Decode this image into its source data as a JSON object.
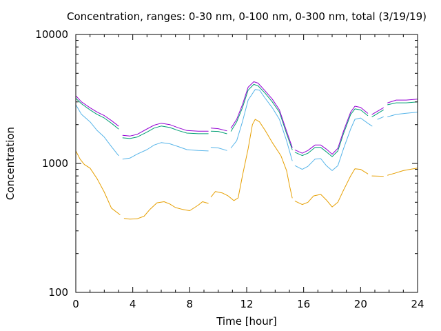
{
  "chart_data": {
    "type": "line",
    "title": "Concentration, ranges: 0-30 nm, 0-100 nm, 0-300 nm, total (3/19/19)",
    "xlabel": "Time [hour]",
    "ylabel": "Concentration",
    "xlim": [
      0,
      24
    ],
    "ylim": [
      100,
      10000
    ],
    "yscale": "log",
    "xticks": [
      "0",
      "4",
      "8",
      "12",
      "16",
      "20",
      "24"
    ],
    "yticks": [
      "100",
      "1000",
      "10000"
    ],
    "grid": false,
    "legend": "none",
    "series": [
      {
        "color": "#e69f00",
        "segments": [
          [
            [
              0,
              1250
            ],
            [
              0.3,
              1080
            ],
            [
              0.6,
              980
            ],
            [
              1,
              920
            ],
            [
              1.5,
              760
            ],
            [
              2,
              600
            ],
            [
              2.5,
              450
            ],
            [
              3.1,
              400
            ]
          ],
          [
            [
              3.4,
              375
            ],
            [
              3.8,
              370
            ],
            [
              4.3,
              372
            ],
            [
              4.8,
              390
            ],
            [
              5.2,
              440
            ],
            [
              5.7,
              495
            ],
            [
              6.2,
              505
            ],
            [
              6.6,
              485
            ],
            [
              7,
              455
            ],
            [
              7.5,
              440
            ],
            [
              8,
              430
            ],
            [
              8.6,
              475
            ],
            [
              8.9,
              505
            ],
            [
              9.3,
              490
            ]
          ],
          [
            [
              9.5,
              550
            ],
            [
              9.8,
              605
            ],
            [
              10.3,
              590
            ],
            [
              10.7,
              560
            ],
            [
              11.1,
              515
            ],
            [
              11.4,
              540
            ],
            [
              11.7,
              800
            ],
            [
              12.1,
              1300
            ],
            [
              12.4,
              2000
            ],
            [
              12.6,
              2200
            ],
            [
              12.9,
              2100
            ],
            [
              13.3,
              1800
            ],
            [
              13.8,
              1450
            ],
            [
              14.4,
              1150
            ],
            [
              14.8,
              880
            ],
            [
              15,
              680
            ],
            [
              15.2,
              540
            ]
          ],
          [
            [
              15.4,
              510
            ],
            [
              15.9,
              480
            ],
            [
              16.3,
              500
            ],
            [
              16.7,
              560
            ],
            [
              17.2,
              575
            ],
            [
              17.6,
              520
            ],
            [
              18,
              460
            ],
            [
              18.4,
              500
            ],
            [
              18.8,
              620
            ],
            [
              19.3,
              800
            ],
            [
              19.6,
              910
            ],
            [
              20,
              900
            ],
            [
              20.5,
              830
            ]
          ],
          [
            [
              20.8,
              800
            ],
            [
              21.6,
              795
            ]
          ],
          [
            [
              21.9,
              810
            ],
            [
              22.4,
              840
            ],
            [
              23,
              880
            ],
            [
              23.6,
              905
            ],
            [
              24,
              920
            ]
          ]
        ]
      },
      {
        "color": "#56b4e9",
        "segments": [
          [
            [
              0,
              2850
            ],
            [
              0.4,
              2400
            ],
            [
              1,
              2100
            ],
            [
              1.5,
              1800
            ],
            [
              2,
              1600
            ],
            [
              2.5,
              1350
            ],
            [
              3,
              1150
            ]
          ],
          [
            [
              3.3,
              1080
            ],
            [
              3.8,
              1100
            ],
            [
              4.3,
              1180
            ],
            [
              5,
              1280
            ],
            [
              5.5,
              1390
            ],
            [
              6,
              1450
            ],
            [
              6.6,
              1420
            ],
            [
              7.2,
              1350
            ],
            [
              7.8,
              1280
            ],
            [
              8.6,
              1260
            ],
            [
              9.3,
              1250
            ]
          ],
          [
            [
              9.5,
              1330
            ],
            [
              10,
              1320
            ],
            [
              10.6,
              1260
            ]
          ],
          [
            [
              10.9,
              1320
            ],
            [
              11.3,
              1500
            ],
            [
              11.7,
              2100
            ],
            [
              12.1,
              3100
            ],
            [
              12.6,
              3750
            ],
            [
              12.9,
              3700
            ],
            [
              13.3,
              3200
            ],
            [
              13.8,
              2700
            ],
            [
              14.3,
              2200
            ],
            [
              14.8,
              1500
            ],
            [
              15.2,
              1050
            ]
          ],
          [
            [
              15.4,
              960
            ],
            [
              15.9,
              900
            ],
            [
              16.3,
              950
            ],
            [
              16.8,
              1080
            ],
            [
              17.2,
              1090
            ],
            [
              17.6,
              960
            ],
            [
              18,
              880
            ],
            [
              18.4,
              960
            ],
            [
              18.8,
              1300
            ],
            [
              19.3,
              1850
            ],
            [
              19.6,
              2200
            ],
            [
              20,
              2250
            ],
            [
              20.5,
              2050
            ],
            [
              20.8,
              1950
            ]
          ],
          [
            [
              21.2,
              2200
            ],
            [
              21.6,
              2300
            ]
          ],
          [
            [
              21.9,
              2300
            ],
            [
              22.5,
              2400
            ],
            [
              23.2,
              2450
            ],
            [
              24,
              2500
            ]
          ]
        ]
      },
      {
        "color": "#009e73",
        "segments": [
          [
            [
              0,
              3200
            ],
            [
              0.4,
              2900
            ],
            [
              1,
              2600
            ],
            [
              1.5,
              2400
            ],
            [
              2,
              2250
            ],
            [
              2.5,
              2050
            ],
            [
              3,
              1850
            ]
          ],
          [
            [
              3.3,
              1580
            ],
            [
              3.8,
              1560
            ],
            [
              4.3,
              1600
            ],
            [
              5,
              1750
            ],
            [
              5.5,
              1880
            ],
            [
              6,
              1950
            ],
            [
              6.6,
              1900
            ],
            [
              7.2,
              1800
            ],
            [
              7.8,
              1720
            ],
            [
              8.6,
              1700
            ],
            [
              9.3,
              1700
            ]
          ],
          [
            [
              9.5,
              1780
            ],
            [
              10,
              1770
            ],
            [
              10.6,
              1700
            ]
          ],
          [
            [
              10.9,
              1780
            ],
            [
              11.3,
              2100
            ],
            [
              11.7,
              2700
            ],
            [
              12.1,
              3700
            ],
            [
              12.5,
              4100
            ],
            [
              12.8,
              4000
            ],
            [
              13.3,
              3500
            ],
            [
              13.8,
              3000
            ],
            [
              14.3,
              2500
            ],
            [
              14.8,
              1700
            ],
            [
              15.2,
              1280
            ]
          ],
          [
            [
              15.4,
              1220
            ],
            [
              15.9,
              1150
            ],
            [
              16.3,
              1200
            ],
            [
              16.8,
              1330
            ],
            [
              17.2,
              1330
            ],
            [
              17.6,
              1230
            ],
            [
              18,
              1130
            ],
            [
              18.4,
              1250
            ],
            [
              18.8,
              1700
            ],
            [
              19.3,
              2400
            ],
            [
              19.6,
              2650
            ],
            [
              20,
              2600
            ],
            [
              20.5,
              2350
            ]
          ],
          [
            [
              20.8,
              2300
            ],
            [
              21.6,
              2600
            ]
          ],
          [
            [
              21.9,
              2850
            ],
            [
              22.5,
              2950
            ],
            [
              23.2,
              2950
            ],
            [
              24,
              3000
            ]
          ]
        ]
      },
      {
        "color": "#9400d3",
        "segments": [
          [
            [
              0,
              3350
            ],
            [
              0.4,
              3000
            ],
            [
              1,
              2700
            ],
            [
              1.5,
              2500
            ],
            [
              2,
              2350
            ],
            [
              2.5,
              2150
            ],
            [
              3,
              1950
            ]
          ],
          [
            [
              3.3,
              1650
            ],
            [
              3.8,
              1630
            ],
            [
              4.3,
              1680
            ],
            [
              5,
              1850
            ],
            [
              5.5,
              1980
            ],
            [
              6,
              2050
            ],
            [
              6.6,
              2000
            ],
            [
              7.2,
              1890
            ],
            [
              7.8,
              1800
            ],
            [
              8.6,
              1780
            ],
            [
              9.3,
              1780
            ]
          ],
          [
            [
              9.5,
              1880
            ],
            [
              10,
              1860
            ],
            [
              10.6,
              1790
            ]
          ],
          [
            [
              10.9,
              1880
            ],
            [
              11.3,
              2200
            ],
            [
              11.7,
              2850
            ],
            [
              12.1,
              3900
            ],
            [
              12.5,
              4300
            ],
            [
              12.8,
              4200
            ],
            [
              13.3,
              3650
            ],
            [
              13.8,
              3150
            ],
            [
              14.3,
              2600
            ],
            [
              14.8,
              1780
            ],
            [
              15.2,
              1330
            ]
          ],
          [
            [
              15.4,
              1270
            ],
            [
              15.9,
              1200
            ],
            [
              16.3,
              1260
            ],
            [
              16.8,
              1390
            ],
            [
              17.2,
              1390
            ],
            [
              17.6,
              1290
            ],
            [
              18,
              1180
            ],
            [
              18.4,
              1310
            ],
            [
              18.8,
              1780
            ],
            [
              19.3,
              2500
            ],
            [
              19.6,
              2780
            ],
            [
              20,
              2720
            ],
            [
              20.5,
              2450
            ]
          ],
          [
            [
              20.8,
              2400
            ],
            [
              21.6,
              2700
            ]
          ],
          [
            [
              21.9,
              2950
            ],
            [
              22.5,
              3100
            ],
            [
              23.2,
              3100
            ],
            [
              24,
              3150
            ]
          ]
        ]
      }
    ]
  }
}
